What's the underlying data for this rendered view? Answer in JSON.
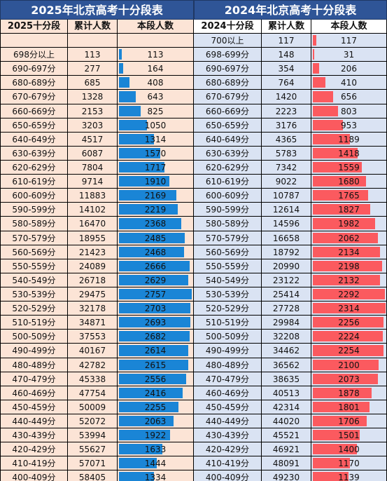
{
  "left": {
    "title": "2025年北京高考十分段表",
    "headers": [
      "2025十分段",
      "累计人数",
      "本段人数"
    ],
    "rows": [
      {
        "seg": "",
        "cum": "",
        "count": ""
      },
      {
        "seg": "698分以上",
        "cum": "113",
        "count": "113"
      },
      {
        "seg": "690-697分",
        "cum": "277",
        "count": "164"
      },
      {
        "seg": "680-689分",
        "cum": "685",
        "count": "408"
      },
      {
        "seg": "670-679分",
        "cum": "1328",
        "count": "643"
      },
      {
        "seg": "660-669分",
        "cum": "2153",
        "count": "825"
      },
      {
        "seg": "650-659分",
        "cum": "3203",
        "count": "1050"
      },
      {
        "seg": "640-649分",
        "cum": "4517",
        "count": "1314"
      },
      {
        "seg": "630-639分",
        "cum": "6087",
        "count": "1570"
      },
      {
        "seg": "620-629分",
        "cum": "7804",
        "count": "1717"
      },
      {
        "seg": "610-619分",
        "cum": "9714",
        "count": "1910"
      },
      {
        "seg": "600-609分",
        "cum": "11883",
        "count": "2169"
      },
      {
        "seg": "590-599分",
        "cum": "14102",
        "count": "2219"
      },
      {
        "seg": "580-589分",
        "cum": "16470",
        "count": "2368"
      },
      {
        "seg": "570-579分",
        "cum": "18955",
        "count": "2485"
      },
      {
        "seg": "560-569分",
        "cum": "21423",
        "count": "2468"
      },
      {
        "seg": "550-559分",
        "cum": "24089",
        "count": "2666"
      },
      {
        "seg": "540-549分",
        "cum": "26718",
        "count": "2629"
      },
      {
        "seg": "530-539分",
        "cum": "29475",
        "count": "2757"
      },
      {
        "seg": "520-529分",
        "cum": "32178",
        "count": "2703"
      },
      {
        "seg": "510-519分",
        "cum": "34871",
        "count": "2693"
      },
      {
        "seg": "500-509分",
        "cum": "37553",
        "count": "2682"
      },
      {
        "seg": "490-499分",
        "cum": "40167",
        "count": "2614"
      },
      {
        "seg": "480-489分",
        "cum": "42782",
        "count": "2615"
      },
      {
        "seg": "470-479分",
        "cum": "45338",
        "count": "2556"
      },
      {
        "seg": "460-469分",
        "cum": "47754",
        "count": "2416"
      },
      {
        "seg": "450-459分",
        "cum": "50009",
        "count": "2255"
      },
      {
        "seg": "440-449分",
        "cum": "52072",
        "count": "2063"
      },
      {
        "seg": "430-439分",
        "cum": "53994",
        "count": "1922"
      },
      {
        "seg": "420-429分",
        "cum": "55627",
        "count": "1633"
      },
      {
        "seg": "410-419分",
        "cum": "57071",
        "count": "1444"
      },
      {
        "seg": "400-409分",
        "cum": "58405",
        "count": "1334"
      }
    ]
  },
  "right": {
    "title": "2024年北京高考十分段表",
    "headers": [
      "2024十分段",
      "累计人数",
      "本段人数"
    ],
    "rows": [
      {
        "seg": "700以上",
        "cum": "117",
        "count": "117"
      },
      {
        "seg": "698-699分",
        "cum": "148",
        "count": "31"
      },
      {
        "seg": "690-697分",
        "cum": "354",
        "count": "206"
      },
      {
        "seg": "680-689分",
        "cum": "764",
        "count": "410"
      },
      {
        "seg": "670-679分",
        "cum": "1420",
        "count": "656"
      },
      {
        "seg": "660-669分",
        "cum": "2223",
        "count": "803"
      },
      {
        "seg": "650-659分",
        "cum": "3176",
        "count": "953"
      },
      {
        "seg": "640-649分",
        "cum": "4365",
        "count": "1189"
      },
      {
        "seg": "630-639分",
        "cum": "5783",
        "count": "1418"
      },
      {
        "seg": "620-629分",
        "cum": "7342",
        "count": "1559"
      },
      {
        "seg": "610-619分",
        "cum": "9022",
        "count": "1680"
      },
      {
        "seg": "600-609分",
        "cum": "10787",
        "count": "1765"
      },
      {
        "seg": "590-599分",
        "cum": "12614",
        "count": "1827"
      },
      {
        "seg": "580-589分",
        "cum": "14596",
        "count": "1982"
      },
      {
        "seg": "570-579分",
        "cum": "16658",
        "count": "2062"
      },
      {
        "seg": "560-569分",
        "cum": "18792",
        "count": "2134"
      },
      {
        "seg": "550-559分",
        "cum": "20990",
        "count": "2198"
      },
      {
        "seg": "540-549分",
        "cum": "23122",
        "count": "2132"
      },
      {
        "seg": "530-539分",
        "cum": "25414",
        "count": "2292"
      },
      {
        "seg": "520-529分",
        "cum": "27728",
        "count": "2314"
      },
      {
        "seg": "510-519分",
        "cum": "29984",
        "count": "2256"
      },
      {
        "seg": "500-509分",
        "cum": "32208",
        "count": "2224"
      },
      {
        "seg": "490-499分",
        "cum": "34462",
        "count": "2254"
      },
      {
        "seg": "480-489分",
        "cum": "36562",
        "count": "2100"
      },
      {
        "seg": "470-479分",
        "cum": "38635",
        "count": "2073"
      },
      {
        "seg": "460-469分",
        "cum": "40513",
        "count": "1878"
      },
      {
        "seg": "450-459分",
        "cum": "42314",
        "count": "1801"
      },
      {
        "seg": "440-449分",
        "cum": "44020",
        "count": "1706"
      },
      {
        "seg": "430-439分",
        "cum": "45521",
        "count": "1501"
      },
      {
        "seg": "420-429分",
        "cum": "46921",
        "count": "1400"
      },
      {
        "seg": "410-419分",
        "cum": "48091",
        "count": "1170"
      },
      {
        "seg": "400-409分",
        "cum": "49230",
        "count": "1139"
      }
    ]
  },
  "colors": {
    "title_bg": "#2f5597",
    "left_row_bg": "#fce4d6",
    "right_row_bg": "#dae3f3",
    "left_bar": "#1a85d6",
    "right_bar": "#fb5a5f"
  }
}
